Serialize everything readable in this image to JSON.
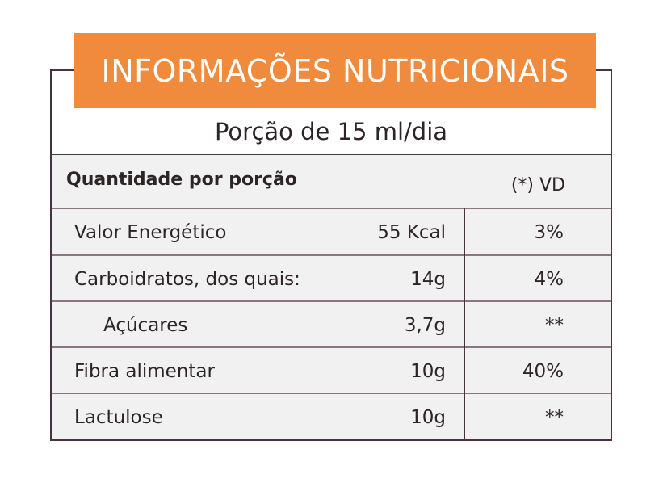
{
  "title": "INFORMAÇÕES NUTRICIONAIS",
  "portion": "Porção de 15 ml/dia",
  "header": {
    "left": "Quantidade por porção",
    "right": "(*) VD"
  },
  "rows": [
    {
      "label": "Valor Energético",
      "amount": "55 Kcal",
      "vd": "3%"
    },
    {
      "label": "Carboidratos, dos quais:",
      "amount": "14g",
      "vd": "4%"
    },
    {
      "label": "Açúcares",
      "amount": "3,7g",
      "vd": "**"
    },
    {
      "label": "Fibra alimentar",
      "amount": "10g",
      "vd": "40%"
    },
    {
      "label": "Lactulose",
      "amount": "10g",
      "vd": "**"
    }
  ],
  "colors": {
    "banner": "#f08a3c",
    "border": "#4a3340",
    "row_background": "#f1f1f1"
  }
}
